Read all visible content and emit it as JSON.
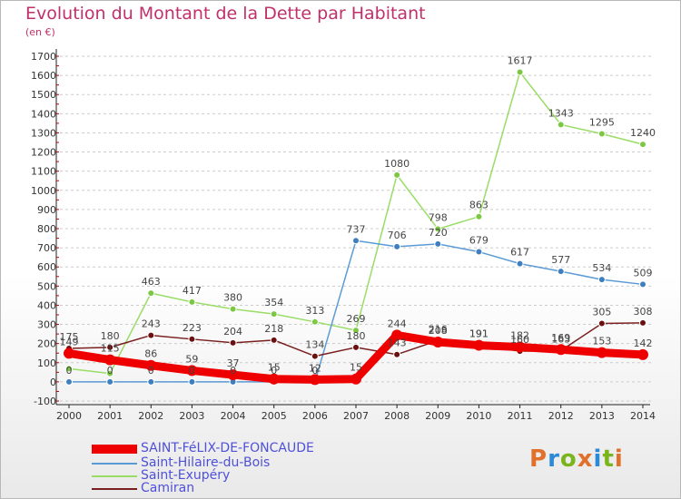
{
  "title": "Evolution du Montant de la Dette par Habitant",
  "subtitle": "(en €)",
  "colors": {
    "title": "#c0306a",
    "legend_text": "#4f50d8",
    "grid": "#cccccc"
  },
  "logo": {
    "text": "Proxiti",
    "colors": [
      "#e0702a",
      "#2a8ad8",
      "#7ab51d",
      "#e0702a",
      "#2a8ad8",
      "#7ab51d",
      "#e0702a"
    ]
  },
  "chart_data": {
    "type": "line",
    "title": "Evolution du Montant de la Dette par Habitant",
    "ylabel": "(en €)",
    "x": [
      "2000",
      "2001",
      "2002",
      "2003",
      "2004",
      "2005",
      "2006",
      "2007",
      "2008",
      "2009",
      "2010",
      "2011",
      "2012",
      "2013",
      "2014"
    ],
    "ylim": [
      -100,
      1700
    ],
    "yticks": [
      -100,
      0,
      100,
      200,
      300,
      400,
      500,
      600,
      700,
      800,
      900,
      1000,
      1100,
      1200,
      1300,
      1400,
      1500,
      1600,
      1700
    ],
    "grid": "horizontal dashed",
    "legend_placement": "bottom-left",
    "series": [
      {
        "name": "SAINT-FéLIX-DE-FONCAUDE",
        "color": "#ee0000",
        "marker": "#ee0000",
        "bold": true,
        "values": [
          149,
          115,
          86,
          59,
          37,
          15,
          12,
          15,
          244,
          208,
          191,
          182,
          169,
          153,
          142
        ]
      },
      {
        "name": "Saint-Hilaire-du-Bois",
        "color": "#5b9bd5",
        "marker": "#3f7fc0",
        "bold": false,
        "values": [
          0,
          0,
          0,
          0,
          0,
          0,
          0,
          737,
          706,
          720,
          679,
          617,
          577,
          534,
          509
        ]
      },
      {
        "name": "Saint-Exupéry",
        "color": "#99dd66",
        "marker": "#7cc843",
        "bold": false,
        "values": [
          69,
          44,
          463,
          417,
          380,
          354,
          313,
          269,
          1080,
          798,
          863,
          1617,
          1343,
          1295,
          1240
        ]
      },
      {
        "name": "Camiran",
        "color": "#7a1f1f",
        "marker": "#6b1010",
        "bold": false,
        "values": [
          175,
          180,
          243,
          223,
          204,
          218,
          134,
          180,
          143,
          216,
          191,
          160,
          163,
          305,
          308
        ]
      }
    ],
    "labels": {
      "SAINT-FéLIX-DE-FONCAUDE": [
        "149",
        "115",
        "86",
        "59",
        "37",
        "15",
        "12",
        "15",
        "244",
        "208",
        "191",
        "182",
        "169",
        "153",
        "142"
      ],
      "Saint-Hilaire-du-Bois": [
        "0",
        "0",
        "0",
        "0",
        "0",
        "0",
        "0",
        "737",
        "706",
        "720",
        "679",
        "617",
        "577",
        "534",
        "509"
      ],
      "Saint-Exupéry": [
        "",
        "",
        "463",
        "417",
        "380",
        "354",
        "313",
        "269",
        "1080",
        "798",
        "863",
        "1617",
        "1343",
        "1295",
        "1240"
      ],
      "Camiran": [
        "175",
        "180",
        "243",
        "223",
        "204",
        "218",
        "134",
        "180",
        "143",
        "216",
        "191",
        "160",
        "163",
        "305",
        "308"
      ]
    }
  }
}
